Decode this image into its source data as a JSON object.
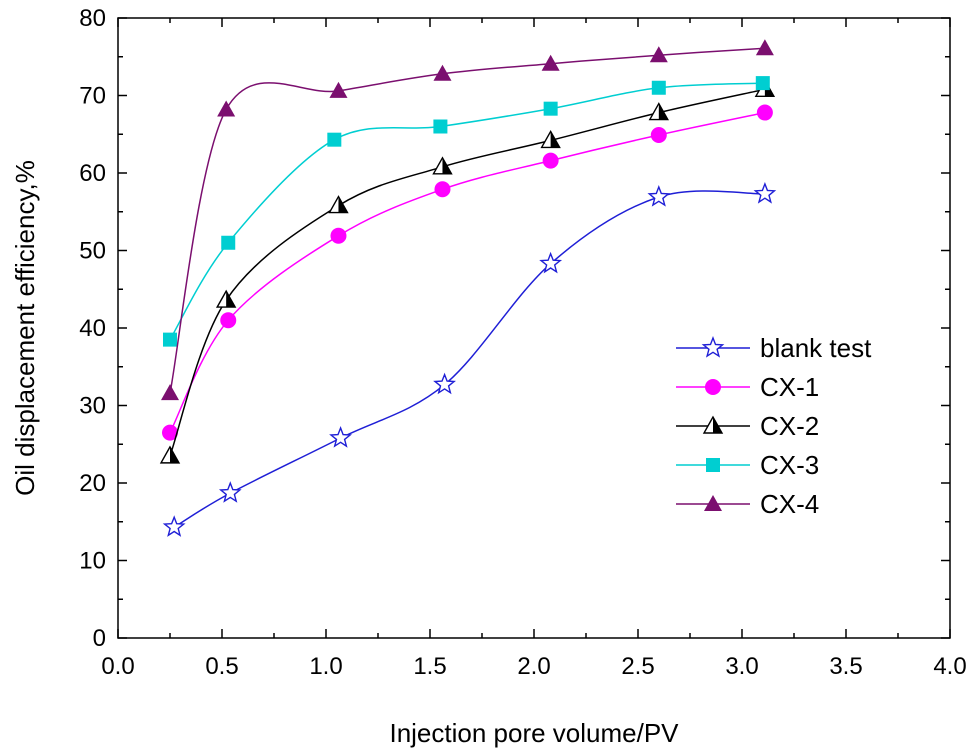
{
  "chart_data": {
    "type": "line",
    "title": "",
    "xlabel": "Injection pore volume/PV",
    "ylabel": "Oil displacement efficiency,%",
    "xlim": [
      0.0,
      4.0
    ],
    "ylim": [
      0,
      80
    ],
    "xticks": [
      "0.0",
      "0.5",
      "1.0",
      "1.5",
      "2.0",
      "2.5",
      "3.0",
      "3.5",
      "4.0"
    ],
    "yticks": [
      "0",
      "10",
      "20",
      "30",
      "40",
      "50",
      "60",
      "70",
      "80"
    ],
    "grid": false,
    "legend_position": "right",
    "series": [
      {
        "name": "blank test",
        "color": "#1f1fd6",
        "marker": "star-open",
        "points": [
          [
            0.27,
            14.3
          ],
          [
            0.54,
            18.7
          ],
          [
            1.07,
            25.8
          ],
          [
            1.57,
            32.7
          ],
          [
            2.08,
            48.3
          ],
          [
            2.6,
            56.9
          ],
          [
            3.11,
            57.3
          ]
        ]
      },
      {
        "name": "CX-1",
        "color": "#ff00ff",
        "marker": "circle",
        "points": [
          [
            0.25,
            26.5
          ],
          [
            0.53,
            41.0
          ],
          [
            1.06,
            51.9
          ],
          [
            1.56,
            57.9
          ],
          [
            2.08,
            61.6
          ],
          [
            2.6,
            64.9
          ],
          [
            3.11,
            67.8
          ]
        ]
      },
      {
        "name": "CX-2",
        "color": "#000000",
        "marker": "triangle-half",
        "points": [
          [
            0.25,
            23.5
          ],
          [
            0.52,
            43.6
          ],
          [
            1.06,
            55.8
          ],
          [
            1.56,
            60.8
          ],
          [
            2.08,
            64.2
          ],
          [
            2.6,
            67.8
          ],
          [
            3.11,
            70.8
          ]
        ]
      },
      {
        "name": "CX-3",
        "color": "#00ced1",
        "marker": "square",
        "points": [
          [
            0.25,
            38.5
          ],
          [
            0.53,
            51.0
          ],
          [
            1.04,
            64.3
          ],
          [
            1.55,
            66.0
          ],
          [
            2.08,
            68.3
          ],
          [
            2.6,
            71.0
          ],
          [
            3.1,
            71.6
          ]
        ]
      },
      {
        "name": "CX-4",
        "color": "#7b0f6f",
        "marker": "triangle",
        "points": [
          [
            0.25,
            31.6
          ],
          [
            0.52,
            68.2
          ],
          [
            1.06,
            70.6
          ],
          [
            1.56,
            72.8
          ],
          [
            2.08,
            74.1
          ],
          [
            2.6,
            75.2
          ],
          [
            3.11,
            76.1
          ]
        ]
      }
    ]
  }
}
